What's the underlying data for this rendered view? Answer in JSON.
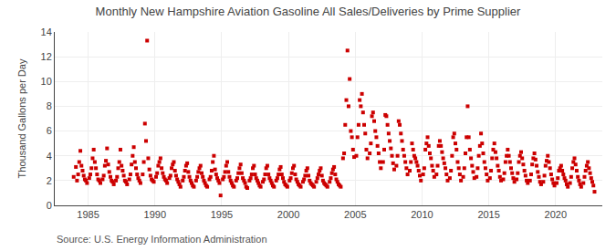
{
  "chart_data": {
    "type": "scatter",
    "title": "Monthly New Hampshire Aviation Gasoline All Sales/Deliveries by Prime Supplier",
    "ylabel": "Thousand Gallons per Day",
    "annotations": [
      "Source: U.S. Energy Information Administration"
    ],
    "color": "#cc0000",
    "marker": "square",
    "grid": true,
    "xlim": [
      1982.5,
      2023.5
    ],
    "xticks": [
      1985,
      1990,
      1995,
      2000,
      2005,
      2010,
      2015,
      2020
    ],
    "ylim": [
      0,
      14
    ],
    "yticks": [
      0,
      2,
      4,
      6,
      8,
      10,
      12,
      14
    ],
    "x": [
      1983.917,
      1984.083,
      1984.167,
      1984.25,
      1984.333,
      1984.417,
      1984.5,
      1984.583,
      1984.667,
      1984.75,
      1984.833,
      1984.917,
      1985.083,
      1985.167,
      1985.25,
      1985.333,
      1985.417,
      1985.5,
      1985.583,
      1985.667,
      1985.75,
      1985.833,
      1985.917,
      1986.083,
      1986.167,
      1986.25,
      1986.333,
      1986.417,
      1986.5,
      1986.583,
      1986.667,
      1986.75,
      1986.833,
      1986.917,
      1987.083,
      1987.167,
      1987.25,
      1987.333,
      1987.417,
      1987.5,
      1987.583,
      1987.667,
      1987.75,
      1987.833,
      1987.917,
      1988.083,
      1988.167,
      1988.25,
      1988.333,
      1988.417,
      1988.5,
      1988.583,
      1988.667,
      1988.75,
      1988.833,
      1988.917,
      1989.083,
      1989.167,
      1989.25,
      1989.333,
      1989.417,
      1989.5,
      1989.583,
      1989.667,
      1989.75,
      1989.833,
      1989.917,
      1990.083,
      1990.167,
      1990.25,
      1990.333,
      1990.417,
      1990.5,
      1990.583,
      1990.667,
      1990.75,
      1990.833,
      1990.917,
      1991.083,
      1991.167,
      1991.25,
      1991.333,
      1991.417,
      1991.5,
      1991.583,
      1991.667,
      1991.75,
      1991.833,
      1991.917,
      1992.083,
      1992.167,
      1992.25,
      1992.333,
      1992.417,
      1992.5,
      1992.583,
      1992.667,
      1992.75,
      1992.833,
      1992.917,
      1993.083,
      1993.167,
      1993.25,
      1993.333,
      1993.417,
      1993.5,
      1993.583,
      1993.667,
      1993.75,
      1993.833,
      1993.917,
      1994.083,
      1994.167,
      1994.25,
      1994.333,
      1994.417,
      1994.5,
      1994.583,
      1994.667,
      1994.75,
      1994.833,
      1994.917,
      1995.083,
      1995.167,
      1995.25,
      1995.333,
      1995.417,
      1995.5,
      1995.583,
      1995.667,
      1995.75,
      1995.833,
      1995.917,
      1996.083,
      1996.167,
      1996.25,
      1996.333,
      1996.417,
      1996.5,
      1996.583,
      1996.667,
      1996.75,
      1996.833,
      1996.917,
      1997.083,
      1997.167,
      1997.25,
      1997.333,
      1997.417,
      1997.5,
      1997.583,
      1997.667,
      1997.75,
      1997.833,
      1997.917,
      1998.083,
      1998.167,
      1998.25,
      1998.333,
      1998.417,
      1998.5,
      1998.583,
      1998.667,
      1998.75,
      1998.833,
      1998.917,
      1999.083,
      1999.167,
      1999.25,
      1999.333,
      1999.417,
      1999.5,
      1999.583,
      1999.667,
      1999.75,
      1999.833,
      1999.917,
      2000.083,
      2000.167,
      2000.25,
      2000.333,
      2000.417,
      2000.5,
      2000.583,
      2000.667,
      2000.75,
      2000.833,
      2000.917,
      2001.083,
      2001.167,
      2001.25,
      2001.333,
      2001.417,
      2001.5,
      2001.583,
      2001.667,
      2001.75,
      2001.833,
      2001.917,
      2002.083,
      2002.167,
      2002.25,
      2002.333,
      2002.417,
      2002.5,
      2002.583,
      2002.667,
      2002.75,
      2002.833,
      2002.917,
      2003.083,
      2003.167,
      2003.25,
      2003.333,
      2003.417,
      2003.5,
      2003.583,
      2003.667,
      2003.75,
      2003.833,
      2003.917,
      2004.083,
      2004.167,
      2004.25,
      2004.333,
      2004.417,
      2004.5,
      2004.583,
      2004.667,
      2004.75,
      2004.833,
      2004.917,
      2005.083,
      2005.167,
      2005.25,
      2005.333,
      2005.417,
      2005.5,
      2005.583,
      2005.667,
      2005.75,
      2005.833,
      2005.917,
      2006.083,
      2006.167,
      2006.25,
      2006.333,
      2006.417,
      2006.5,
      2006.583,
      2006.667,
      2006.75,
      2006.833,
      2006.917,
      2007.083,
      2007.167,
      2007.25,
      2007.333,
      2007.417,
      2007.5,
      2007.583,
      2007.667,
      2007.75,
      2007.833,
      2007.917,
      2008.083,
      2008.167,
      2008.25,
      2008.333,
      2008.417,
      2008.5,
      2008.583,
      2008.667,
      2008.75,
      2008.833,
      2008.917,
      2009.083,
      2009.167,
      2009.25,
      2009.333,
      2009.417,
      2009.5,
      2009.583,
      2009.667,
      2009.75,
      2009.833,
      2009.917,
      2010.083,
      2010.167,
      2010.25,
      2010.333,
      2010.417,
      2010.5,
      2010.583,
      2010.667,
      2010.75,
      2010.833,
      2010.917,
      2011.083,
      2011.167,
      2011.25,
      2011.333,
      2011.417,
      2011.5,
      2011.583,
      2011.667,
      2011.75,
      2011.833,
      2011.917,
      2012.083,
      2012.167,
      2012.25,
      2012.333,
      2012.417,
      2012.5,
      2012.583,
      2012.667,
      2012.75,
      2012.833,
      2012.917,
      2013.083,
      2013.167,
      2013.25,
      2013.333,
      2013.417,
      2013.5,
      2013.583,
      2013.667,
      2013.75,
      2013.833,
      2013.917,
      2014.083,
      2014.167,
      2014.25,
      2014.333,
      2014.417,
      2014.5,
      2014.583,
      2014.667,
      2014.75,
      2014.833,
      2014.917,
      2015.083,
      2015.167,
      2015.25,
      2015.333,
      2015.417,
      2015.5,
      2015.583,
      2015.667,
      2015.75,
      2015.833,
      2015.917,
      2016.083,
      2016.167,
      2016.25,
      2016.333,
      2016.417,
      2016.5,
      2016.583,
      2016.667,
      2016.75,
      2016.833,
      2016.917,
      2017.083,
      2017.167,
      2017.25,
      2017.333,
      2017.417,
      2017.5,
      2017.583,
      2017.667,
      2017.75,
      2017.833,
      2017.917,
      2018.083,
      2018.167,
      2018.25,
      2018.333,
      2018.417,
      2018.5,
      2018.583,
      2018.667,
      2018.75,
      2018.833,
      2018.917,
      2019.083,
      2019.167,
      2019.25,
      2019.333,
      2019.417,
      2019.5,
      2019.583,
      2019.667,
      2019.75,
      2019.833,
      2019.917,
      2020.083,
      2020.167,
      2020.25,
      2020.333,
      2020.417,
      2020.5,
      2020.583,
      2020.667,
      2020.75,
      2020.833,
      2020.917,
      2021.083,
      2021.167,
      2021.25,
      2021.333,
      2021.417,
      2021.5,
      2021.583,
      2021.667,
      2021.75,
      2021.833,
      2021.917,
      2022.083,
      2022.167,
      2022.25,
      2022.333,
      2022.417,
      2022.5,
      2022.583,
      2022.667,
      2022.75,
      2022.833,
      2022.917
    ],
    "values": [
      2.3,
      3.1,
      2.0,
      2.5,
      3.5,
      4.4,
      3.2,
      2.8,
      2.4,
      2.1,
      2.0,
      1.8,
      2.2,
      2.5,
      3.0,
      3.8,
      4.5,
      3.5,
      3.0,
      2.5,
      2.1,
      2.0,
      1.8,
      2.1,
      2.4,
      3.2,
      3.6,
      4.6,
      3.3,
      2.7,
      2.3,
      2.0,
      1.9,
      1.7,
      2.0,
      2.3,
      3.0,
      3.5,
      4.5,
      3.2,
      2.8,
      2.4,
      2.0,
      1.9,
      1.7,
      2.1,
      2.5,
      3.3,
      4.0,
      4.7,
      3.5,
      3.0,
      2.5,
      2.2,
      2.0,
      1.8,
      2.5,
      3.5,
      6.6,
      5.2,
      13.3,
      3.8,
      2.9,
      2.4,
      2.1,
      2.0,
      1.9,
      2.3,
      2.6,
      3.2,
      3.5,
      3.8,
      3.0,
      2.6,
      2.3,
      2.1,
      2.0,
      1.8,
      2.2,
      2.4,
      3.0,
      3.3,
      3.5,
      2.8,
      2.4,
      2.1,
      1.9,
      1.7,
      1.5,
      2.0,
      2.3,
      2.8,
      3.2,
      3.4,
      2.7,
      2.3,
      2.0,
      1.8,
      1.6,
      1.5,
      2.0,
      2.3,
      2.7,
      3.0,
      3.2,
      2.6,
      2.3,
      2.0,
      1.8,
      1.6,
      1.5,
      2.1,
      2.3,
      2.8,
      3.5,
      4.0,
      2.9,
      2.5,
      2.2,
      2.0,
      1.8,
      0.8,
      2.1,
      2.3,
      2.7,
      3.2,
      3.5,
      2.7,
      2.3,
      2.0,
      1.8,
      1.6,
      1.5,
      2.0,
      2.2,
      2.6,
      3.0,
      3.3,
      2.6,
      2.2,
      2.0,
      1.8,
      1.5,
      1.4,
      2.0,
      2.2,
      2.5,
      3.0,
      3.2,
      2.5,
      2.2,
      2.0,
      1.8,
      1.6,
      1.5,
      1.9,
      2.1,
      2.5,
      3.0,
      3.2,
      2.5,
      2.2,
      2.0,
      1.8,
      1.6,
      1.5,
      2.0,
      2.2,
      2.5,
      2.9,
      3.1,
      2.5,
      2.2,
      1.9,
      1.7,
      1.6,
      1.5,
      2.0,
      2.2,
      2.6,
      3.0,
      3.2,
      2.5,
      2.1,
      1.9,
      1.7,
      1.6,
      1.5,
      1.9,
      2.1,
      2.4,
      2.8,
      3.0,
      2.4,
      2.0,
      1.8,
      1.7,
      1.6,
      1.5,
      1.9,
      2.2,
      2.5,
      2.8,
      3.0,
      2.4,
      2.0,
      1.8,
      1.7,
      1.6,
      1.5,
      1.9,
      2.2,
      2.6,
      2.9,
      3.1,
      2.5,
      2.1,
      1.9,
      1.7,
      1.6,
      1.5,
      3.8,
      4.2,
      6.5,
      8.5,
      12.5,
      8.0,
      10.2,
      6.0,
      5.5,
      4.5,
      3.9,
      4.0,
      5.5,
      6.5,
      8.5,
      8.0,
      9.0,
      7.5,
      6.5,
      5.8,
      4.5,
      3.8,
      4.2,
      5.0,
      7.2,
      7.5,
      6.8,
      6.0,
      5.5,
      4.8,
      4.2,
      3.5,
      3.0,
      3.5,
      4.5,
      7.3,
      7.2,
      6.5,
      5.8,
      5.2,
      4.6,
      4.0,
      3.4,
      2.9,
      3.2,
      4.0,
      6.8,
      6.5,
      5.8,
      5.2,
      4.5,
      4.0,
      3.5,
      3.0,
      2.5,
      2.8,
      3.5,
      5.0,
      4.5,
      4.0,
      3.8,
      3.5,
      3.2,
      2.8,
      2.4,
      2.0,
      2.5,
      3.0,
      4.5,
      5.0,
      5.5,
      4.8,
      4.2,
      3.8,
      3.2,
      2.8,
      2.3,
      2.5,
      3.2,
      4.8,
      5.2,
      4.8,
      4.3,
      3.8,
      3.4,
      3.0,
      2.5,
      2.0,
      2.2,
      2.8,
      4.0,
      5.5,
      5.8,
      5.0,
      4.5,
      3.5,
      3.0,
      2.5,
      2.0,
      2.3,
      3.0,
      4.2,
      5.5,
      8.0,
      5.5,
      4.5,
      3.8,
      3.2,
      2.7,
      2.2,
      2.3,
      3.0,
      4.0,
      4.8,
      5.8,
      5.0,
      4.2,
      3.5,
      3.0,
      2.5,
      2.0,
      2.2,
      2.8,
      3.8,
      4.5,
      5.0,
      4.3,
      3.8,
      3.2,
      2.8,
      2.3,
      2.0,
      2.1,
      2.6,
      3.5,
      4.0,
      4.5,
      4.0,
      3.5,
      3.0,
      2.6,
      2.2,
      1.9,
      2.1,
      2.6,
      3.5,
      4.0,
      4.3,
      3.8,
      3.3,
      2.8,
      2.4,
      2.0,
      1.8,
      2.0,
      2.5,
      3.3,
      3.8,
      4.2,
      3.7,
      3.2,
      2.7,
      2.3,
      1.9,
      1.7,
      1.9,
      2.4,
      3.2,
      3.6,
      4.0,
      3.5,
      3.0,
      2.5,
      2.1,
      1.8,
      1.6,
      1.8,
      2.2,
      2.8,
      3.0,
      3.2,
      2.8,
      2.5,
      2.2,
      2.0,
      1.7,
      1.5,
      1.8,
      2.3,
      3.0,
      3.5,
      3.8,
      3.3,
      2.8,
      2.3,
      2.0,
      1.7,
      1.5,
      1.8,
      2.3,
      2.8,
      3.2,
      3.5,
      3.0,
      2.6,
      2.2,
      1.9,
      1.6,
      1.1
    ]
  }
}
